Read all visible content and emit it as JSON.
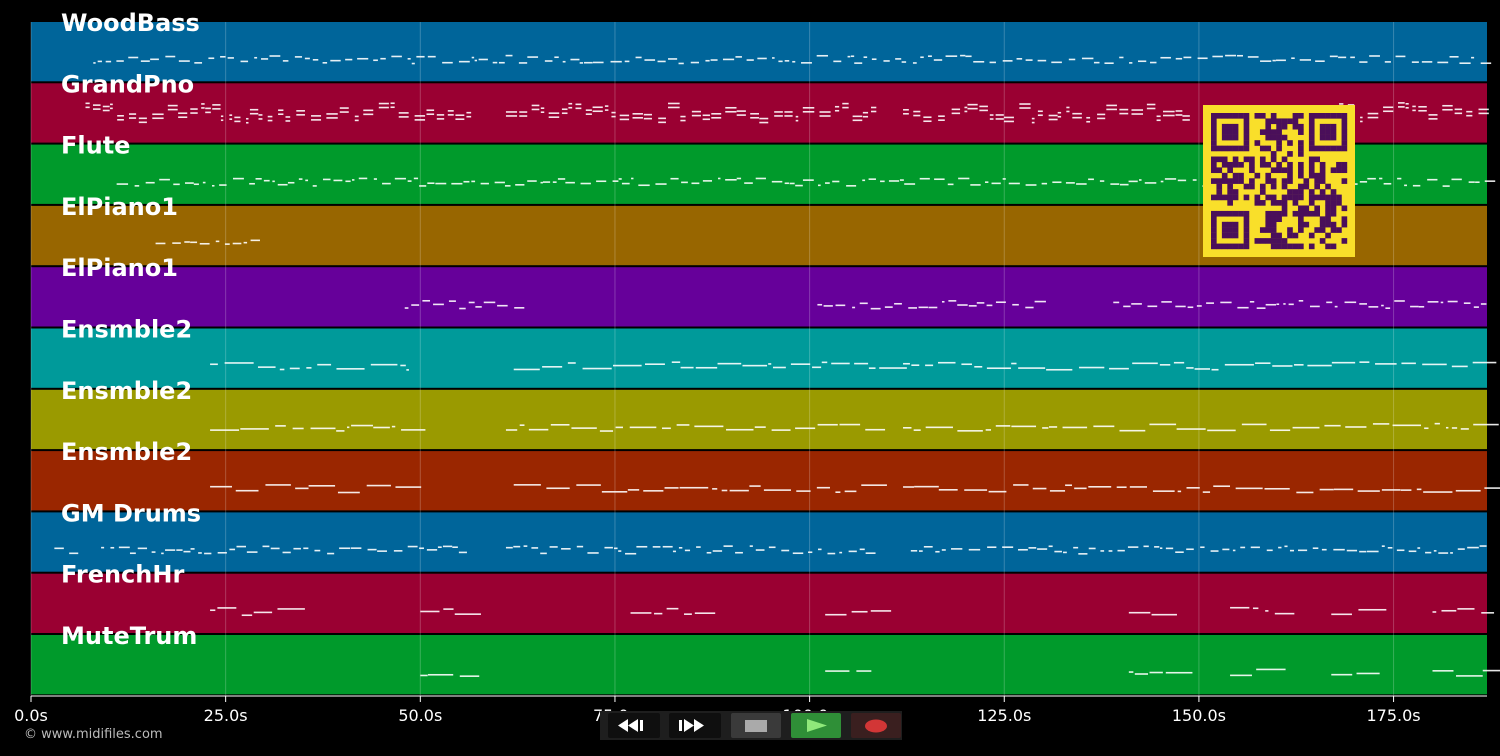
{
  "credit": "© www.midifiles.com",
  "tracks": [
    {
      "name": "WoodBass",
      "color": "#00659a"
    },
    {
      "name": "GrandPno",
      "color": "#9a0032"
    },
    {
      "name": "Flute",
      "color": "#009a2b"
    },
    {
      "name": "ElPiano1",
      "color": "#986600"
    },
    {
      "name": "ElPiano1",
      "color": "#66009a"
    },
    {
      "name": "Ensmble2",
      "color": "#009a9a"
    },
    {
      "name": "Ensmble2",
      "color": "#9a9a00"
    },
    {
      "name": "Ensmble2",
      "color": "#9a2600"
    },
    {
      "name": "GM Drums",
      "color": "#00659a"
    },
    {
      "name": "FrenchHr",
      "color": "#9a0032"
    },
    {
      "name": "MuteTrum",
      "color": "#009a2b"
    }
  ],
  "time_axis": {
    "unit": "s",
    "max_seconds": 187,
    "ticks": [
      "0.0s",
      "25.0s",
      "50.0s",
      "75.0s",
      "100.0s",
      "125.0s",
      "150.0s",
      "175.0s"
    ],
    "tick_values": [
      0,
      25,
      50,
      75,
      100,
      125,
      150,
      175
    ]
  },
  "transport": {
    "buttons": [
      {
        "name": "rewind-button",
        "icon": "rewind-icon"
      },
      {
        "name": "fast-forward-button",
        "icon": "fast-forward-icon"
      },
      {
        "name": "stop-button",
        "icon": "stop-icon"
      },
      {
        "name": "play-button",
        "icon": "play-icon",
        "active": true
      },
      {
        "name": "record-button",
        "icon": "record-icon"
      }
    ]
  },
  "qr_code": {
    "color": "#f9df2a",
    "module_color": "#4a0f5a"
  },
  "colors": {
    "background": "#000000",
    "note": "#ffffff",
    "grid": "#ffffff"
  }
}
